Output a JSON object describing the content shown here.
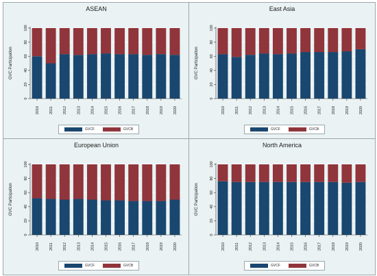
{
  "chart_data": [
    {
      "type": "bar",
      "stacked": true,
      "title": "ASEAN",
      "ylabel": "GVC Participation",
      "xlabel": "",
      "ylim": [
        0,
        100
      ],
      "yticks": [
        0,
        20,
        40,
        60,
        80,
        100
      ],
      "categories": [
        "2010",
        "2011",
        "2012",
        "2013",
        "2014",
        "2015",
        "2016",
        "2017",
        "2018",
        "2019",
        "2020"
      ],
      "series": [
        {
          "name": "GVCF",
          "values": [
            60,
            50,
            63,
            62,
            63,
            64,
            63,
            63,
            62,
            63,
            62
          ]
        },
        {
          "name": "GVCB",
          "values": [
            40,
            50,
            37,
            38,
            37,
            36,
            37,
            37,
            38,
            37,
            38
          ]
        }
      ],
      "legend": "bottom"
    },
    {
      "type": "bar",
      "stacked": true,
      "title": "East Asia",
      "ylabel": "GVC Participation",
      "xlabel": "",
      "ylim": [
        0,
        100
      ],
      "yticks": [
        0,
        20,
        40,
        60,
        80,
        100
      ],
      "categories": [
        "2010",
        "2011",
        "2012",
        "2013",
        "2014",
        "2015",
        "2016",
        "2017",
        "2018",
        "2019",
        "2020"
      ],
      "series": [
        {
          "name": "GVCF",
          "values": [
            63,
            59,
            62,
            64,
            63,
            64,
            66,
            66,
            66,
            67,
            70
          ]
        },
        {
          "name": "GVCB",
          "values": [
            37,
            41,
            38,
            36,
            37,
            36,
            34,
            34,
            34,
            33,
            30
          ]
        }
      ],
      "legend": "bottom"
    },
    {
      "type": "bar",
      "stacked": true,
      "title": "European Union",
      "ylabel": "GVC Participation",
      "xlabel": "",
      "ylim": [
        0,
        100
      ],
      "yticks": [
        0,
        20,
        40,
        60,
        80,
        100
      ],
      "categories": [
        "2010",
        "2011",
        "2012",
        "2013",
        "2014",
        "2015",
        "2016",
        "2017",
        "2018",
        "2019",
        "2020"
      ],
      "series": [
        {
          "name": "GVCF",
          "values": [
            52,
            51,
            50,
            51,
            50,
            49,
            49,
            48,
            48,
            48,
            50
          ]
        },
        {
          "name": "GVCB",
          "values": [
            48,
            49,
            50,
            49,
            50,
            51,
            51,
            52,
            52,
            52,
            50
          ]
        }
      ],
      "legend": "bottom"
    },
    {
      "type": "bar",
      "stacked": true,
      "title": "North America",
      "ylabel": "GVC Participation",
      "xlabel": "",
      "ylim": [
        0,
        100
      ],
      "yticks": [
        0,
        20,
        40,
        60,
        80,
        100
      ],
      "categories": [
        "2010",
        "2011",
        "2012",
        "2013",
        "2014",
        "2015",
        "2016",
        "2017",
        "2018",
        "2019",
        "2020"
      ],
      "series": [
        {
          "name": "GVCF",
          "values": [
            76,
            75,
            75,
            75,
            75,
            75,
            75,
            75,
            75,
            74,
            75
          ]
        },
        {
          "name": "GVCB",
          "values": [
            24,
            25,
            25,
            25,
            25,
            25,
            25,
            25,
            25,
            26,
            25
          ]
        }
      ],
      "legend": "bottom"
    }
  ],
  "colors": {
    "GVCF": "#1a476f",
    "GVCB": "#90353b",
    "panel_bg": "#eaf2f3",
    "grid": "#ffffff"
  }
}
